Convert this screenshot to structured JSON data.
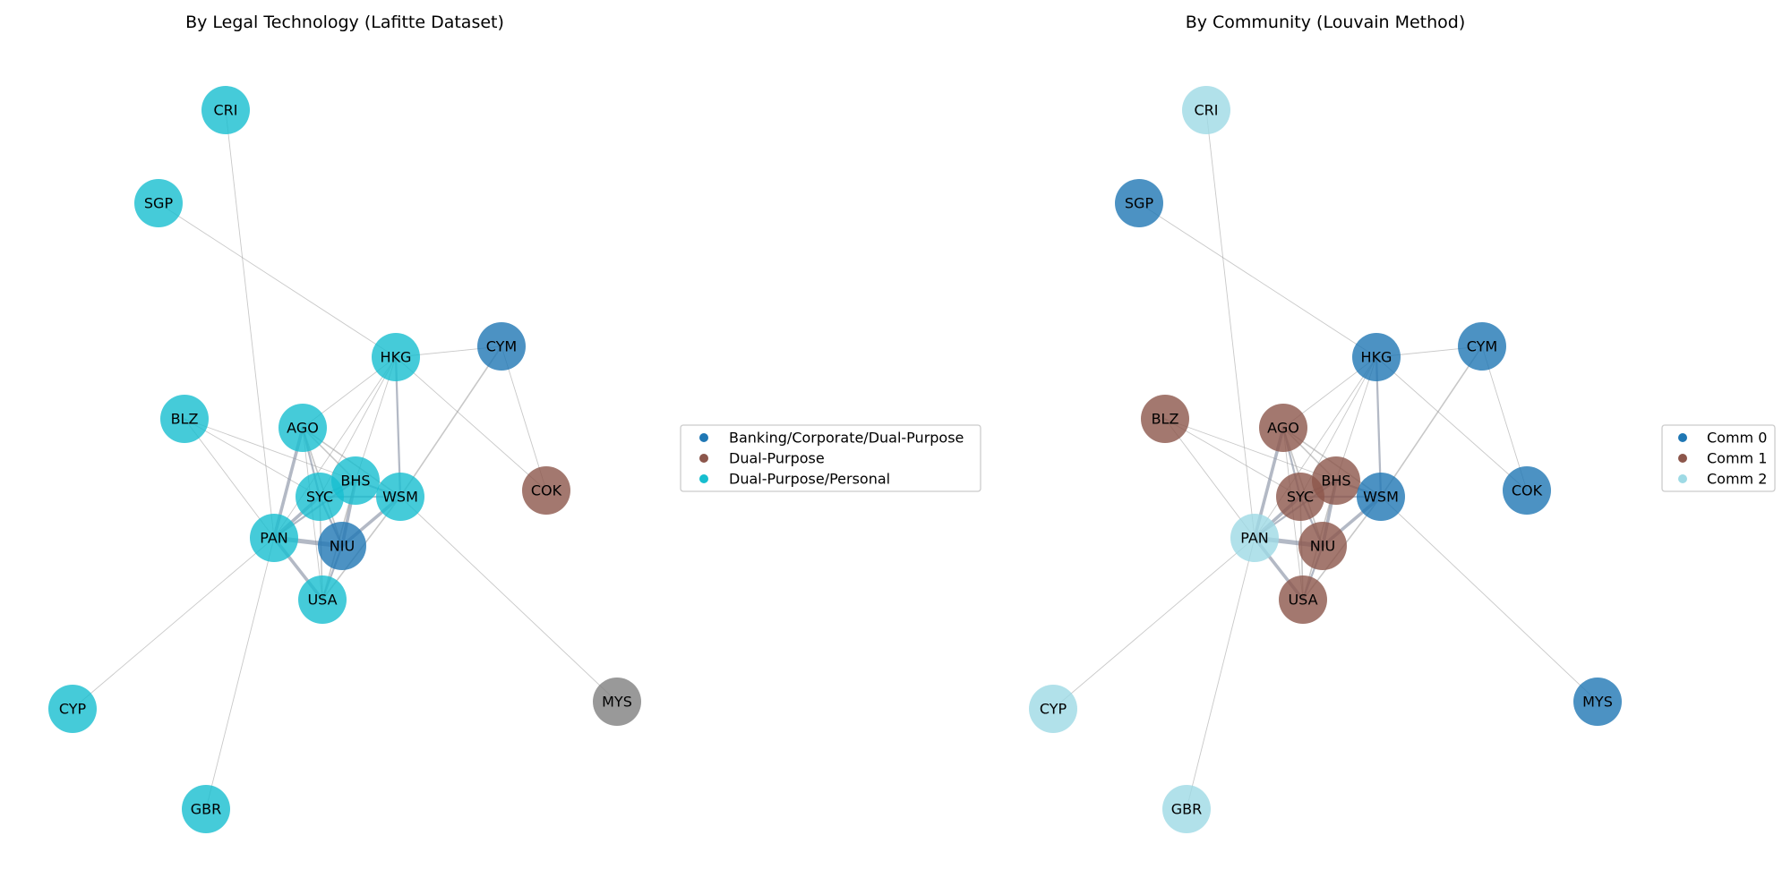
{
  "panels": [
    {
      "id": "technology",
      "title": "By Legal Technology (Lafitte Dataset)",
      "legend": [
        {
          "label": "Banking/Corporate/Dual-Purpose",
          "color": "#1f77b4"
        },
        {
          "label": "Dual-Purpose",
          "color": "#8c564b"
        },
        {
          "label": "Dual-Purpose/Personal",
          "color": "#17becf"
        }
      ],
      "node_colors": {
        "CRI": "#17becf",
        "SGP": "#17becf",
        "HKG": "#17becf",
        "CYM": "#1f77b4",
        "BLZ": "#17becf",
        "AGO": "#17becf",
        "BHS": "#17becf",
        "SYC": "#17becf",
        "WSM": "#17becf",
        "COK": "#8c564b",
        "PAN": "#17becf",
        "NIU": "#1f77b4",
        "USA": "#17becf",
        "CYP": "#17becf",
        "MYS": "#7f7f7f",
        "GBR": "#17becf"
      }
    },
    {
      "id": "community",
      "title": "By Community (Louvain Method)",
      "legend": [
        {
          "label": "Comm 0",
          "color": "#1f77b4"
        },
        {
          "label": "Comm 1",
          "color": "#8c564b"
        },
        {
          "label": "Comm 2",
          "color": "#9edae5"
        }
      ],
      "node_colors": {
        "CRI": "#9edae5",
        "SGP": "#1f77b4",
        "HKG": "#1f77b4",
        "CYM": "#1f77b4",
        "BLZ": "#8c564b",
        "AGO": "#8c564b",
        "BHS": "#8c564b",
        "SYC": "#8c564b",
        "WSM": "#1f77b4",
        "COK": "#1f77b4",
        "PAN": "#9edae5",
        "NIU": "#8c564b",
        "USA": "#8c564b",
        "CYP": "#9edae5",
        "MYS": "#1f77b4",
        "GBR": "#9edae5"
      }
    }
  ],
  "nodes": [
    "CRI",
    "SGP",
    "HKG",
    "CYM",
    "BLZ",
    "AGO",
    "BHS",
    "SYC",
    "WSM",
    "COK",
    "PAN",
    "NIU",
    "USA",
    "CYP",
    "MYS",
    "GBR"
  ],
  "edges": [
    {
      "source": "CRI",
      "target": "PAN",
      "weight": 1
    },
    {
      "source": "SGP",
      "target": "HKG",
      "weight": 1
    },
    {
      "source": "HKG",
      "target": "CYM",
      "weight": 1
    },
    {
      "source": "HKG",
      "target": "AGO",
      "weight": 1
    },
    {
      "source": "HKG",
      "target": "SYC",
      "weight": 1
    },
    {
      "source": "HKG",
      "target": "BHS",
      "weight": 1
    },
    {
      "source": "HKG",
      "target": "WSM",
      "weight": 2
    },
    {
      "source": "HKG",
      "target": "COK",
      "weight": 1
    },
    {
      "source": "HKG",
      "target": "PAN",
      "weight": 1
    },
    {
      "source": "CYM",
      "target": "WSM",
      "weight": 1.5
    },
    {
      "source": "CYM",
      "target": "COK",
      "weight": 1
    },
    {
      "source": "BLZ",
      "target": "PAN",
      "weight": 1
    },
    {
      "source": "BLZ",
      "target": "SYC",
      "weight": 1
    },
    {
      "source": "BLZ",
      "target": "BHS",
      "weight": 1
    },
    {
      "source": "AGO",
      "target": "PAN",
      "weight": 3
    },
    {
      "source": "AGO",
      "target": "SYC",
      "weight": 2
    },
    {
      "source": "AGO",
      "target": "BHS",
      "weight": 1.5
    },
    {
      "source": "AGO",
      "target": "WSM",
      "weight": 1.5
    },
    {
      "source": "AGO",
      "target": "NIU",
      "weight": 1.5
    },
    {
      "source": "AGO",
      "target": "USA",
      "weight": 1
    },
    {
      "source": "BHS",
      "target": "SYC",
      "weight": 2
    },
    {
      "source": "BHS",
      "target": "WSM",
      "weight": 2
    },
    {
      "source": "BHS",
      "target": "NIU",
      "weight": 3
    },
    {
      "source": "BHS",
      "target": "USA",
      "weight": 1.5
    },
    {
      "source": "BHS",
      "target": "PAN",
      "weight": 2
    },
    {
      "source": "SYC",
      "target": "PAN",
      "weight": 3
    },
    {
      "source": "SYC",
      "target": "NIU",
      "weight": 2
    },
    {
      "source": "SYC",
      "target": "USA",
      "weight": 1.5
    },
    {
      "source": "SYC",
      "target": "WSM",
      "weight": 2
    },
    {
      "source": "WSM",
      "target": "NIU",
      "weight": 3
    },
    {
      "source": "WSM",
      "target": "USA",
      "weight": 1.5
    },
    {
      "source": "WSM",
      "target": "MYS",
      "weight": 1
    },
    {
      "source": "PAN",
      "target": "NIU",
      "weight": 4
    },
    {
      "source": "PAN",
      "target": "USA",
      "weight": 3
    },
    {
      "source": "PAN",
      "target": "CYP",
      "weight": 1
    },
    {
      "source": "PAN",
      "target": "GBR",
      "weight": 1
    },
    {
      "source": "NIU",
      "target": "USA",
      "weight": 2
    }
  ]
}
